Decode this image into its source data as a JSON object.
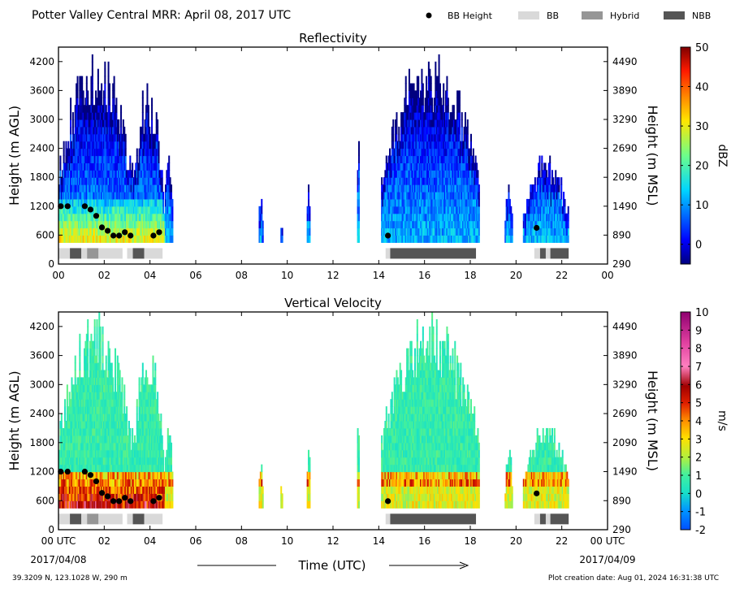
{
  "header": {
    "title": "Potter Valley Central MRR:  April 08, 2017 UTC",
    "legend": [
      {
        "label": "BB Height",
        "kind": "dot",
        "color": "#000000"
      },
      {
        "label": "BB",
        "kind": "rect",
        "color": "#d9d9d9"
      },
      {
        "label": "Hybrid",
        "kind": "rect",
        "color": "#969696"
      },
      {
        "label": "NBB",
        "kind": "rect",
        "color": "#555555"
      }
    ]
  },
  "footer": {
    "location": "39.3209 N, 123.1028 W, 290 m",
    "created": "Plot creation date: Aug 01, 2024 16:31:38 UTC",
    "start_date": "2017/04/08",
    "end_date": "2017/04/09",
    "xlabel": "Time (UTC)"
  },
  "chart_data": [
    {
      "type": "heatmap",
      "title": "Reflectivity",
      "xlabel": "Time (UTC)",
      "ylabel": "Height (m AGL)",
      "ylabel_right": "Height (m MSL)",
      "xlim": [
        0,
        24
      ],
      "ylim": [
        0,
        4500
      ],
      "xticks": [
        "00",
        "02",
        "04",
        "06",
        "08",
        "10",
        "12",
        "14",
        "16",
        "18",
        "20",
        "22",
        "00"
      ],
      "yticks": [
        0,
        600,
        1200,
        1800,
        2400,
        3000,
        3600,
        4200
      ],
      "yticks_right": [
        290,
        890,
        1490,
        2090,
        2690,
        3290,
        3890,
        4490
      ],
      "colorbar": {
        "label": "dBZ",
        "min": -5,
        "max": 50,
        "ticks": [
          0,
          10,
          20,
          30,
          40,
          50
        ]
      },
      "bb_height": [
        {
          "t": 0.1,
          "h": 1200
        },
        {
          "t": 0.4,
          "h": 1200
        },
        {
          "t": 1.15,
          "h": 1200
        },
        {
          "t": 1.4,
          "h": 1130
        },
        {
          "t": 1.65,
          "h": 1000
        },
        {
          "t": 1.9,
          "h": 760
        },
        {
          "t": 2.15,
          "h": 690
        },
        {
          "t": 2.4,
          "h": 590
        },
        {
          "t": 2.65,
          "h": 590
        },
        {
          "t": 2.9,
          "h": 660
        },
        {
          "t": 3.15,
          "h": 590
        },
        {
          "t": 4.15,
          "h": 590
        },
        {
          "t": 4.4,
          "h": 660
        },
        {
          "t": 14.4,
          "h": 590
        },
        {
          "t": 20.9,
          "h": 750
        }
      ],
      "bb_classification": [
        {
          "start": 0.0,
          "end": 0.5,
          "cls": "BB"
        },
        {
          "start": 0.5,
          "end": 1.0,
          "cls": "NBB"
        },
        {
          "start": 1.0,
          "end": 1.25,
          "cls": "BB"
        },
        {
          "start": 1.25,
          "end": 1.75,
          "cls": "Hybrid"
        },
        {
          "start": 1.75,
          "end": 2.8,
          "cls": "BB"
        },
        {
          "start": 3.0,
          "end": 3.25,
          "cls": "BB"
        },
        {
          "start": 3.25,
          "end": 3.75,
          "cls": "NBB"
        },
        {
          "start": 3.75,
          "end": 4.55,
          "cls": "BB"
        },
        {
          "start": 14.3,
          "end": 14.5,
          "cls": "BB"
        },
        {
          "start": 14.5,
          "end": 18.25,
          "cls": "NBB"
        },
        {
          "start": 20.8,
          "end": 21.05,
          "cls": "BB"
        },
        {
          "start": 21.05,
          "end": 21.3,
          "cls": "NBB"
        },
        {
          "start": 21.3,
          "end": 21.5,
          "cls": "BB"
        },
        {
          "start": 21.5,
          "end": 22.3,
          "cls": "NBB"
        }
      ]
    },
    {
      "type": "heatmap",
      "title": "Vertical Velocity",
      "xlabel": "Time (UTC)",
      "ylabel": "Height (m AGL)",
      "ylabel_right": "Height (m MSL)",
      "xlim": [
        0,
        24
      ],
      "ylim": [
        0,
        4500
      ],
      "xticks": [
        "00 UTC",
        "02",
        "04",
        "06",
        "08",
        "10",
        "12",
        "14",
        "16",
        "18",
        "20",
        "22",
        "00 UTC"
      ],
      "yticks": [
        0,
        600,
        1200,
        1800,
        2400,
        3000,
        3600,
        4200
      ],
      "yticks_right": [
        290,
        890,
        1490,
        2090,
        2690,
        3290,
        3890,
        4490
      ],
      "colorbar": {
        "label": "m/s",
        "min": -2,
        "max": 10,
        "ticks": [
          -2,
          -1,
          0,
          1,
          2,
          3,
          4,
          5,
          6,
          7,
          8,
          9,
          10
        ]
      },
      "bb_height": [
        {
          "t": 0.1,
          "h": 1200
        },
        {
          "t": 0.4,
          "h": 1200
        },
        {
          "t": 1.15,
          "h": 1200
        },
        {
          "t": 1.4,
          "h": 1130
        },
        {
          "t": 1.65,
          "h": 1000
        },
        {
          "t": 1.9,
          "h": 760
        },
        {
          "t": 2.15,
          "h": 690
        },
        {
          "t": 2.4,
          "h": 590
        },
        {
          "t": 2.65,
          "h": 590
        },
        {
          "t": 2.9,
          "h": 660
        },
        {
          "t": 3.15,
          "h": 590
        },
        {
          "t": 4.15,
          "h": 590
        },
        {
          "t": 4.4,
          "h": 660
        },
        {
          "t": 14.4,
          "h": 590
        },
        {
          "t": 20.9,
          "h": 750
        }
      ],
      "bb_classification": [
        {
          "start": 0.0,
          "end": 0.5,
          "cls": "BB"
        },
        {
          "start": 0.5,
          "end": 1.0,
          "cls": "NBB"
        },
        {
          "start": 1.0,
          "end": 1.25,
          "cls": "BB"
        },
        {
          "start": 1.25,
          "end": 1.75,
          "cls": "Hybrid"
        },
        {
          "start": 1.75,
          "end": 2.8,
          "cls": "BB"
        },
        {
          "start": 3.0,
          "end": 3.25,
          "cls": "BB"
        },
        {
          "start": 3.25,
          "end": 3.75,
          "cls": "NBB"
        },
        {
          "start": 3.75,
          "end": 4.55,
          "cls": "BB"
        },
        {
          "start": 14.3,
          "end": 14.5,
          "cls": "BB"
        },
        {
          "start": 14.5,
          "end": 18.25,
          "cls": "NBB"
        },
        {
          "start": 20.8,
          "end": 21.05,
          "cls": "BB"
        },
        {
          "start": 21.05,
          "end": 21.3,
          "cls": "NBB"
        },
        {
          "start": 21.3,
          "end": 21.5,
          "cls": "BB"
        },
        {
          "start": 21.5,
          "end": 22.3,
          "cls": "NBB"
        }
      ]
    }
  ]
}
